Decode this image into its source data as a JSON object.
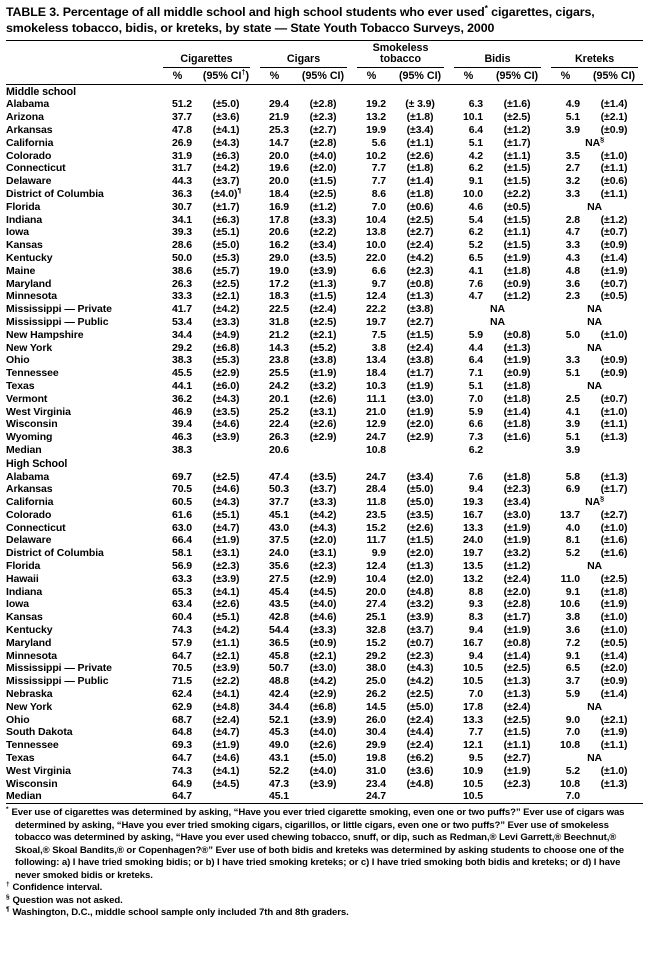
{
  "title": "TABLE 3. Percentage of all middle school and high school students who ever used* cigarettes, cigars, smokeless tobacco, bidis, or kreteks, by state — State Youth Tobacco Surveys, 2000",
  "columns": {
    "groups": [
      {
        "label": "Cigarettes",
        "sub": [
          "%",
          "(95% CI†)"
        ]
      },
      {
        "label": "Cigars",
        "sub": [
          "%",
          "(95% CI)"
        ]
      },
      {
        "label": "Smokeless tobacco",
        "sub": [
          "%",
          "(95% CI)"
        ]
      },
      {
        "label": "Bidis",
        "sub": [
          "%",
          "(95% CI)"
        ]
      },
      {
        "label": "Kreteks",
        "sub": [
          "%",
          "(95% CI)"
        ]
      }
    ]
  },
  "sections": [
    {
      "name": "Middle school",
      "rows": [
        {
          "state": "Alabama",
          "values": [
            "51.2",
            "(±5.0)",
            "29.4",
            "(±2.8)",
            "19.2",
            "(± 3.9)",
            "6.3",
            "(±1.6)",
            "4.9",
            "(±1.4)"
          ]
        },
        {
          "state": "Arizona",
          "values": [
            "37.7",
            "(±3.6)",
            "21.9",
            "(±2.3)",
            "13.2",
            "(±1.8)",
            "10.1",
            "(±2.5)",
            "5.1",
            "(±2.1)"
          ]
        },
        {
          "state": "Arkansas",
          "values": [
            "47.8",
            "(±4.1)",
            "25.3",
            "(±2.7)",
            "19.9",
            "(±3.4)",
            "6.4",
            "(±1.2)",
            "3.9",
            "(±0.9)"
          ]
        },
        {
          "state": "California",
          "values": [
            "26.9",
            "(±4.3)",
            "14.7",
            "(±2.8)",
            "5.6",
            "(±1.1)",
            "5.1",
            "(±1.7)",
            "NA§",
            ""
          ]
        },
        {
          "state": "Colorado",
          "values": [
            "31.9",
            "(±6.3)",
            "20.0",
            "(±4.0)",
            "10.2",
            "(±2.6)",
            "4.2",
            "(±1.1)",
            "3.5",
            "(±1.0)"
          ]
        },
        {
          "state": "Connecticut",
          "values": [
            "31.7",
            "(±4.2)",
            "19.6",
            "(±2.0)",
            "7.7",
            "(±1.8)",
            "6.2",
            "(±1.5)",
            "2.7",
            "(±1.1)"
          ]
        },
        {
          "state": "Delaware",
          "values": [
            "44.3",
            "(±3.7)",
            "20.0",
            "(±1.5)",
            "7.7",
            "(±1.4)",
            "9.1",
            "(±1.5)",
            "3.2",
            "(±0.6)"
          ]
        },
        {
          "state": "District of Columbia",
          "values": [
            "36.3",
            "(±4.0)¶",
            "18.4",
            "(±2.5)",
            "8.6",
            "(±1.8)",
            "10.0",
            "(±2.2)",
            "3.3",
            "(±1.1)"
          ]
        },
        {
          "state": "Florida",
          "values": [
            "30.7",
            "(±1.7)",
            "16.9",
            "(±1.2)",
            "7.0",
            "(±0.6)",
            "4.6",
            "(±0.5)",
            "NA",
            ""
          ]
        },
        {
          "state": "Indiana",
          "values": [
            "34.1",
            "(±6.3)",
            "17.8",
            "(±3.3)",
            "10.4",
            "(±2.5)",
            "5.4",
            "(±1.5)",
            "2.8",
            "(±1.2)"
          ]
        },
        {
          "state": "Iowa",
          "values": [
            "39.3",
            "(±5.1)",
            "20.6",
            "(±2.2)",
            "13.8",
            "(±2.7)",
            "6.2",
            "(±1.1)",
            "4.7",
            "(±0.7)"
          ]
        },
        {
          "state": "Kansas",
          "values": [
            "28.6",
            "(±5.0)",
            "16.2",
            "(±3.4)",
            "10.0",
            "(±2.4)",
            "5.2",
            "(±1.5)",
            "3.3",
            "(±0.9)"
          ]
        },
        {
          "state": "Kentucky",
          "values": [
            "50.0",
            "(±5.3)",
            "29.0",
            "(±3.5)",
            "22.0",
            "(±4.2)",
            "6.5",
            "(±1.9)",
            "4.3",
            "(±1.4)"
          ]
        },
        {
          "state": "Maine",
          "values": [
            "38.6",
            "(±5.7)",
            "19.0",
            "(±3.9)",
            "6.6",
            "(±2.3)",
            "4.1",
            "(±1.8)",
            "4.8",
            "(±1.9)"
          ]
        },
        {
          "state": "Maryland",
          "values": [
            "26.3",
            "(±2.5)",
            "17.2",
            "(±1.3)",
            "9.7",
            "(±0.8)",
            "7.6",
            "(±0.9)",
            "3.6",
            "(±0.7)"
          ]
        },
        {
          "state": "Minnesota",
          "values": [
            "33.3",
            "(±2.1)",
            "18.3",
            "(±1.5)",
            "12.4",
            "(±1.3)",
            "4.7",
            "(±1.2)",
            "2.3",
            "(±0.5)"
          ]
        },
        {
          "state": "Mississippi — Private",
          "values": [
            "41.7",
            "(±4.2)",
            "22.5",
            "(±2.4)",
            "22.2",
            "(±3.8)",
            "NA",
            "",
            "NA",
            ""
          ]
        },
        {
          "state": "Mississippi — Public",
          "values": [
            "53.4",
            "(±3.3)",
            "31.8",
            "(±2.5)",
            "19.7",
            "(±2.7)",
            "NA",
            "",
            "NA",
            ""
          ]
        },
        {
          "state": "New Hampshire",
          "values": [
            "34.4",
            "(±4.9)",
            "21.2",
            "(±2.1)",
            "7.5",
            "(±1.5)",
            "5.9",
            "(±0.8)",
            "5.0",
            "(±1.0)"
          ]
        },
        {
          "state": "New York",
          "values": [
            "29.2",
            "(±6.8)",
            "14.3",
            "(±5.2)",
            "3.8",
            "(±2.4)",
            "4.4",
            "(±1.3)",
            "NA",
            ""
          ]
        },
        {
          "state": "Ohio",
          "values": [
            "38.3",
            "(±5.3)",
            "23.8",
            "(±3.8)",
            "13.4",
            "(±3.8)",
            "6.4",
            "(±1.9)",
            "3.3",
            "(±0.9)"
          ]
        },
        {
          "state": "Tennessee",
          "values": [
            "45.5",
            "(±2.9)",
            "25.5",
            "(±1.9)",
            "18.4",
            "(±1.7)",
            "7.1",
            "(±0.9)",
            "5.1",
            "(±0.9)"
          ]
        },
        {
          "state": "Texas",
          "values": [
            "44.1",
            "(±6.0)",
            "24.2",
            "(±3.2)",
            "10.3",
            "(±1.9)",
            "5.1",
            "(±1.8)",
            "NA",
            ""
          ]
        },
        {
          "state": "Vermont",
          "values": [
            "36.2",
            "(±4.3)",
            "20.1",
            "(±2.6)",
            "11.1",
            "(±3.0)",
            "7.0",
            "(±1.8)",
            "2.5",
            "(±0.7)"
          ]
        },
        {
          "state": "West Virginia",
          "values": [
            "46.9",
            "(±3.5)",
            "25.2",
            "(±3.1)",
            "21.0",
            "(±1.9)",
            "5.9",
            "(±1.4)",
            "4.1",
            "(±1.0)"
          ]
        },
        {
          "state": "Wisconsin",
          "values": [
            "39.4",
            "(±4.6)",
            "22.4",
            "(±2.6)",
            "12.9",
            "(±2.0)",
            "6.6",
            "(±1.8)",
            "3.9",
            "(±1.1)"
          ]
        },
        {
          "state": "Wyoming",
          "values": [
            "46.3",
            "(±3.9)",
            "26.3",
            "(±2.9)",
            "24.7",
            "(±2.9)",
            "7.3",
            "(±1.6)",
            "5.1",
            "(±1.3)"
          ]
        },
        {
          "state": "Median",
          "values": [
            "38.3",
            "",
            "20.6",
            "",
            "10.8",
            "",
            "6.2",
            "",
            "3.9",
            ""
          ]
        }
      ]
    },
    {
      "name": "High School",
      "rows": [
        {
          "state": "Alabama",
          "values": [
            "69.7",
            "(±2.5)",
            "47.4",
            "(±3.5)",
            "24.7",
            "(±3.4)",
            "7.6",
            "(±1.8)",
            "5.8",
            "(±1.3)"
          ]
        },
        {
          "state": "Arkansas",
          "values": [
            "70.5",
            "(±4.6)",
            "50.3",
            "(±3.7)",
            "28.4",
            "(±5.0)",
            "9.4",
            "(±2.3)",
            "6.9",
            "(±1.7)"
          ]
        },
        {
          "state": "California",
          "values": [
            "60.5",
            "(±4.3)",
            "37.7",
            "(±3.3)",
            "11.8",
            "(±5.0)",
            "19.3",
            "(±3.4)",
            "NA§",
            ""
          ]
        },
        {
          "state": "Colorado",
          "values": [
            "61.6",
            "(±5.1)",
            "45.1",
            "(±4.2)",
            "23.5",
            "(±3.5)",
            "16.7",
            "(±3.0)",
            "13.7",
            "(±2.7)"
          ]
        },
        {
          "state": "Connecticut",
          "values": [
            "63.0",
            "(±4.7)",
            "43.0",
            "(±4.3)",
            "15.2",
            "(±2.6)",
            "13.3",
            "(±1.9)",
            "4.0",
            "(±1.0)"
          ]
        },
        {
          "state": "Delaware",
          "values": [
            "66.4",
            "(±1.9)",
            "37.5",
            "(±2.0)",
            "11.7",
            "(±1.5)",
            "24.0",
            "(±1.9)",
            "8.1",
            "(±1.6)"
          ]
        },
        {
          "state": "District of Columbia",
          "values": [
            "58.1",
            "(±3.1)",
            "24.0",
            "(±3.1)",
            "9.9",
            "(±2.0)",
            "19.7",
            "(±3.2)",
            "5.2",
            "(±1.6)"
          ]
        },
        {
          "state": "Florida",
          "values": [
            "56.9",
            "(±2.3)",
            "35.6",
            "(±2.3)",
            "12.4",
            "(±1.3)",
            "13.5",
            "(±1.2)",
            "NA",
            ""
          ]
        },
        {
          "state": "Hawaii",
          "values": [
            "63.3",
            "(±3.9)",
            "27.5",
            "(±2.9)",
            "10.4",
            "(±2.0)",
            "13.2",
            "(±2.4)",
            "11.0",
            "(±2.5)"
          ]
        },
        {
          "state": "Indiana",
          "values": [
            "65.3",
            "(±4.1)",
            "45.4",
            "(±4.5)",
            "20.0",
            "(±4.8)",
            "8.8",
            "(±2.0)",
            "9.1",
            "(±1.8)"
          ]
        },
        {
          "state": "Iowa",
          "values": [
            "63.4",
            "(±2.6)",
            "43.5",
            "(±4.0)",
            "27.4",
            "(±3.2)",
            "9.3",
            "(±2.8)",
            "10.6",
            "(±1.9)"
          ]
        },
        {
          "state": "Kansas",
          "values": [
            "60.4",
            "(±5.1)",
            "42.8",
            "(±4.6)",
            "25.1",
            "(±3.9)",
            "8.3",
            "(±1.7)",
            "3.8",
            "(±1.0)"
          ]
        },
        {
          "state": "Kentucky",
          "values": [
            "74.3",
            "(±4.2)",
            "54.4",
            "(±3.3)",
            "32.8",
            "(±3.7)",
            "9.4",
            "(±1.9)",
            "3.6",
            "(±1.0)"
          ]
        },
        {
          "state": "Maryland",
          "values": [
            "57.9",
            "(±1.1)",
            "36.5",
            "(±0.9)",
            "15.2",
            "(±0.7)",
            "16.7",
            "(±0.8)",
            "7.2",
            "(±0.5)"
          ]
        },
        {
          "state": "Minnesota",
          "values": [
            "64.7",
            "(±2.1)",
            "45.8",
            "(±2.1)",
            "29.2",
            "(±2.3)",
            "9.4",
            "(±1.4)",
            "9.1",
            "(±1.4)"
          ]
        },
        {
          "state": "Mississippi — Private",
          "values": [
            "70.5",
            "(±3.9)",
            "50.7",
            "(±3.0)",
            "38.0",
            "(±4.3)",
            "10.5",
            "(±2.5)",
            "6.5",
            "(±2.0)"
          ]
        },
        {
          "state": "Mississippi — Public",
          "values": [
            "71.5",
            "(±2.2)",
            "48.8",
            "(±4.2)",
            "25.0",
            "(±4.2)",
            "10.5",
            "(±1.3)",
            "3.7",
            "(±0.9)"
          ]
        },
        {
          "state": "Nebraska",
          "values": [
            "62.4",
            "(±4.1)",
            "42.4",
            "(±2.9)",
            "26.2",
            "(±2.5)",
            "7.0",
            "(±1.3)",
            "5.9",
            "(±1.4)"
          ]
        },
        {
          "state": "New York",
          "values": [
            "62.9",
            "(±4.8)",
            "34.4",
            "(±6.8)",
            "14.5",
            "(±5.0)",
            "17.8",
            "(±2.4)",
            "NA",
            ""
          ]
        },
        {
          "state": "Ohio",
          "values": [
            "68.7",
            "(±2.4)",
            "52.1",
            "(±3.9)",
            "26.0",
            "(±2.4)",
            "13.3",
            "(±2.5)",
            "9.0",
            "(±2.1)"
          ]
        },
        {
          "state": "South Dakota",
          "values": [
            "64.8",
            "(±4.7)",
            "45.3",
            "(±4.0)",
            "30.4",
            "(±4.4)",
            "7.7",
            "(±1.5)",
            "7.0",
            "(±1.9)"
          ]
        },
        {
          "state": "Tennessee",
          "values": [
            "69.3",
            "(±1.9)",
            "49.0",
            "(±2.6)",
            "29.9",
            "(±2.4)",
            "12.1",
            "(±1.1)",
            "10.8",
            "(±1.1)"
          ]
        },
        {
          "state": "Texas",
          "values": [
            "64.7",
            "(±4.6)",
            "43.1",
            "(±5.0)",
            "19.8",
            "(±6.2)",
            "9.5",
            "(±2.7)",
            "NA",
            ""
          ]
        },
        {
          "state": "West Virginia",
          "values": [
            "74.3",
            "(±4.1)",
            "52.2",
            "(±4.0)",
            "31.0",
            "(±3.6)",
            "10.9",
            "(±1.9)",
            "5.2",
            "(±1.0)"
          ]
        },
        {
          "state": "Wisconsin",
          "values": [
            "64.9",
            "(±4.5)",
            "47.3",
            "(±3.9)",
            "23.4",
            "(±4.8)",
            "10.5",
            "(±2.3)",
            "10.8",
            "(±1.3)"
          ]
        },
        {
          "state": "Median",
          "values": [
            "64.7",
            "",
            "45.1",
            "",
            "24.7",
            "",
            "10.5",
            "",
            "7.0",
            ""
          ]
        }
      ]
    }
  ],
  "footnotes": [
    {
      "symbol": "*",
      "text": "Ever use of cigarettes was determined by asking, “Have you ever tried cigarette smoking, even one or two puffs?” Ever use of cigars was determined by asking, “Have you ever tried smoking cigars, cigarillos, or little cigars, even one or two puffs?” Ever use of smokeless tobacco was determined by asking, “Have you ever used chewing tobacco, snuff, or dip, such as Redman,® Levi Garrett,® Beechnut,® Skoal,® Skoal Bandits,® or Copenhagen?®” Ever use of both bidis and kreteks was determined by asking students to choose one of the following: a) I have tried smoking bidis; or b) I have tried smoking kreteks; or c) I have tried smoking both bidis and kreteks; or d) I have never smoked bidis or kreteks."
    },
    {
      "symbol": "†",
      "text": "Confidence interval."
    },
    {
      "symbol": "§",
      "text": "Question was not asked."
    },
    {
      "symbol": "¶",
      "text": "Washington, D.C., middle school sample only included 7th and 8th graders."
    }
  ]
}
